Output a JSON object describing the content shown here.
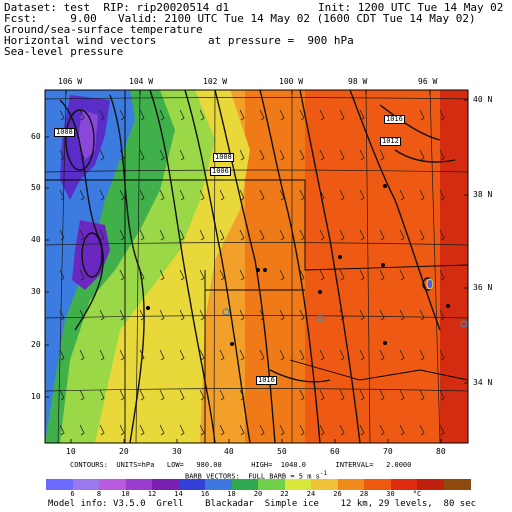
{
  "header": {
    "dataset": "Dataset: test  RIP: rip20020514 d1",
    "init": "Init: 1200 UTC Tue 14 May 02",
    "fcst": "Fcst:     9.00",
    "valid": "Valid: 2100 UTC Tue 14 May 02 (1600 CDT Tue 14 May 02)",
    "field1": "Ground/sea-surface temperature",
    "field2": "Horizontal wind vectors",
    "pressure": "at pressure =  900 hPa",
    "field3": "Sea-level pressure"
  },
  "top_lon_labels": [
    "106 W",
    "104 W",
    "102 W",
    "100 W",
    "98 W",
    "96 W"
  ],
  "right_lat_labels": [
    "40 N",
    "38 N",
    "36 N",
    "34 N"
  ],
  "left_grid_labels": [
    "60",
    "50",
    "40",
    "30",
    "20",
    "10"
  ],
  "bottom_grid_labels": [
    "10",
    "20",
    "30",
    "40",
    "50",
    "60",
    "70",
    "80"
  ],
  "pressure_labels": [
    "1016",
    "1012",
    "1008",
    "1006",
    "1016",
    "1008"
  ],
  "footer": {
    "contours": "CONTOURS:  UNITS=hPa   LOW=   980.00       HIGH=  1040.0       INTERVAL=   2.0000",
    "barbs": "BARB VECTORS:  FULL BARB = 5 m s",
    "barbs_exp": "-1",
    "model_info": "Model info: V3.5.0  Grell    Blackadar  Simple ice    12 km, 29 levels,  80 sec"
  },
  "colorbar": {
    "labels": [
      "6",
      "8",
      "10",
      "12",
      "14",
      "16",
      "18",
      "20",
      "22",
      "24",
      "26",
      "28",
      "30",
      "°C"
    ],
    "colors": [
      "#6a6aff",
      "#9a78f0",
      "#b85be0",
      "#9a3cd0",
      "#7a20b0",
      "#3040d8",
      "#3c78e0",
      "#2fa850",
      "#6fd04a",
      "#d8e83a",
      "#f0c23a",
      "#f08a1a",
      "#f05a10",
      "#e02c10",
      "#c0200c",
      "#8c4a0e"
    ]
  }
}
